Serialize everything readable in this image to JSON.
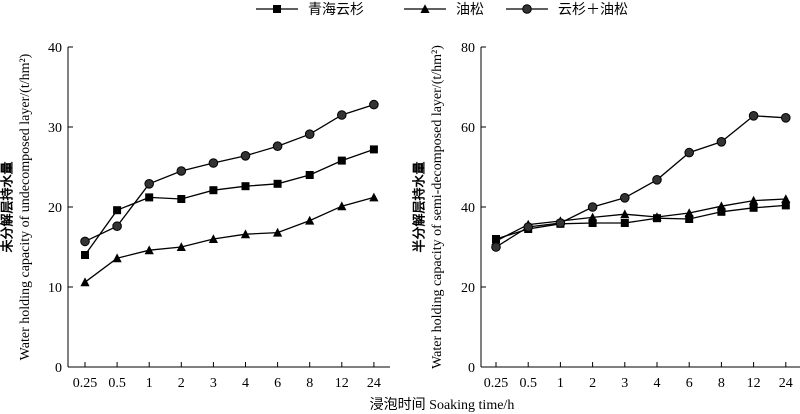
{
  "legend": {
    "items": [
      {
        "label": "青海云杉",
        "marker": "square"
      },
      {
        "label": "油松",
        "marker": "triangle"
      },
      {
        "label": "云杉＋油松",
        "marker": "circle"
      }
    ]
  },
  "xlabel": "浸泡时间 Soaking time/h",
  "chart_data": [
    {
      "type": "line",
      "ylabel_cn": "未分解层持水量",
      "ylabel_en": "Water holding capacity of undecomposed layer/(t/hm²)",
      "ylim": [
        0,
        40
      ],
      "yticks": [
        0,
        10,
        20,
        30,
        40
      ],
      "categories": [
        "0.25",
        "0.5",
        "1",
        "2",
        "3",
        "4",
        "6",
        "8",
        "12",
        "24"
      ],
      "series": [
        {
          "name": "青海云杉",
          "marker": "square",
          "values": [
            14.0,
            19.6,
            21.2,
            21.0,
            22.1,
            22.6,
            22.9,
            24.0,
            25.8,
            27.2
          ]
        },
        {
          "name": "油松",
          "marker": "triangle",
          "values": [
            10.6,
            13.6,
            14.6,
            15.0,
            16.0,
            16.6,
            16.8,
            18.3,
            20.1,
            21.2
          ]
        },
        {
          "name": "云杉＋油松",
          "marker": "circle",
          "values": [
            15.7,
            17.6,
            22.9,
            24.5,
            25.5,
            26.4,
            27.6,
            29.1,
            31.5,
            32.8
          ]
        }
      ]
    },
    {
      "type": "line",
      "ylabel_cn": "半分解层持水量",
      "ylabel_en": "Water holding capacity of semi-decomposed layer/(t/hm²)",
      "ylim": [
        0,
        80
      ],
      "yticks": [
        0,
        20,
        40,
        60,
        80
      ],
      "categories": [
        "0.25",
        "0.5",
        "1",
        "2",
        "3",
        "4",
        "6",
        "8",
        "12",
        "24"
      ],
      "series": [
        {
          "name": "青海云杉",
          "marker": "square",
          "values": [
            32.0,
            34.5,
            35.8,
            36.0,
            36.0,
            37.2,
            37.0,
            38.8,
            39.8,
            40.4
          ]
        },
        {
          "name": "油松",
          "marker": "triangle",
          "values": [
            31.5,
            35.6,
            36.5,
            37.4,
            38.2,
            37.5,
            38.5,
            40.2,
            41.6,
            42.0
          ]
        },
        {
          "name": "云杉＋油松",
          "marker": "circle",
          "values": [
            30.0,
            35.0,
            36.0,
            40.0,
            42.3,
            46.8,
            53.6,
            56.3,
            62.8,
            62.3
          ]
        }
      ]
    }
  ]
}
